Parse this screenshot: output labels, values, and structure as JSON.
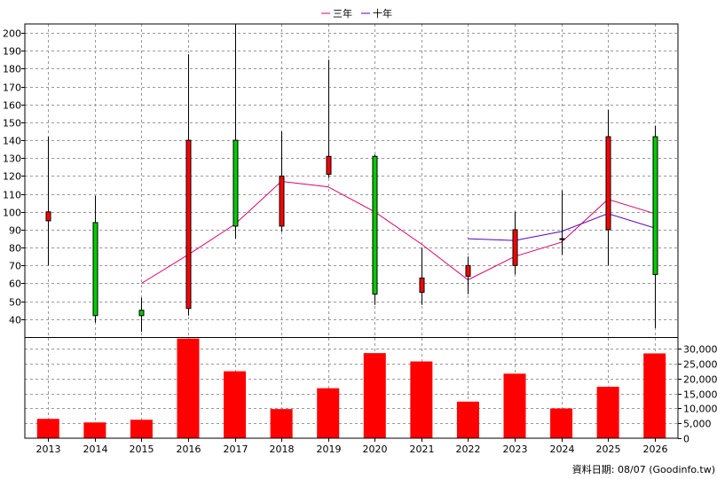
{
  "chart_data": {
    "type": "candlestick+bar",
    "legend": [
      {
        "name": "三年",
        "color": "#e0006e"
      },
      {
        "name": "十年",
        "color": "#5a00c8"
      }
    ],
    "categories": [
      "2013",
      "2014",
      "2015",
      "2016",
      "2017",
      "2018",
      "2019",
      "2020",
      "2021",
      "2022",
      "2023",
      "2024",
      "2025",
      "2026"
    ],
    "price_axis": {
      "ylim": [
        30,
        205
      ],
      "ticks": [
        "200",
        "190",
        "180",
        "170",
        "160",
        "150",
        "140",
        "130",
        "120",
        "110",
        "100",
        "90",
        "80",
        "70",
        "60",
        "50",
        "40"
      ]
    },
    "volume_axis": {
      "ylim": [
        0,
        34000
      ],
      "ticks": [
        "30,000",
        "25,000",
        "20,000",
        "15,000",
        "10,000",
        "5,000",
        "0"
      ]
    },
    "candles": [
      {
        "open": 95,
        "close": 100,
        "high": 142,
        "low": 70
      },
      {
        "open": 94,
        "close": 42,
        "high": 109,
        "low": 38
      },
      {
        "open": 45,
        "close": 42,
        "high": 52,
        "low": 33
      },
      {
        "open": 46,
        "close": 140,
        "high": 188,
        "low": 42
      },
      {
        "open": 140,
        "close": 92,
        "high": 205,
        "low": 85
      },
      {
        "open": 92,
        "close": 120,
        "high": 145,
        "low": 89
      },
      {
        "open": 121,
        "close": 131,
        "high": 185,
        "low": 119
      },
      {
        "open": 131,
        "close": 54,
        "high": 132,
        "low": 48
      },
      {
        "open": 55,
        "close": 63,
        "high": 80,
        "low": 48
      },
      {
        "open": 64,
        "close": 70,
        "high": 75,
        "low": 54
      },
      {
        "open": 70,
        "close": 90,
        "high": 100,
        "low": 65
      },
      {
        "open": 85,
        "close": 85,
        "high": 112,
        "low": 76
      },
      {
        "open": 90,
        "close": 142,
        "high": 157,
        "low": 70
      },
      {
        "open": 142,
        "close": 65,
        "high": 148,
        "low": 35
      }
    ],
    "series": [
      {
        "name": "三年",
        "values": [
          null,
          null,
          60,
          76,
          93,
          117,
          114,
          100,
          82,
          62,
          75,
          83,
          107,
          99
        ]
      },
      {
        "name": "十年",
        "values": [
          null,
          null,
          null,
          null,
          null,
          null,
          null,
          null,
          null,
          85,
          84,
          89,
          99,
          91
        ]
      }
    ],
    "volume": [
      6500,
      5300,
      6200,
      33500,
      22500,
      9800,
      16800,
      28600,
      25800,
      12300,
      21700,
      10000,
      17300,
      28500
    ],
    "colors": {
      "up": "#ff0000",
      "down": "#00cc00",
      "volume": "#ff0000",
      "grid": "#999999"
    },
    "footer": "資料日期: 08/07  (Goodinfo.tw)"
  }
}
